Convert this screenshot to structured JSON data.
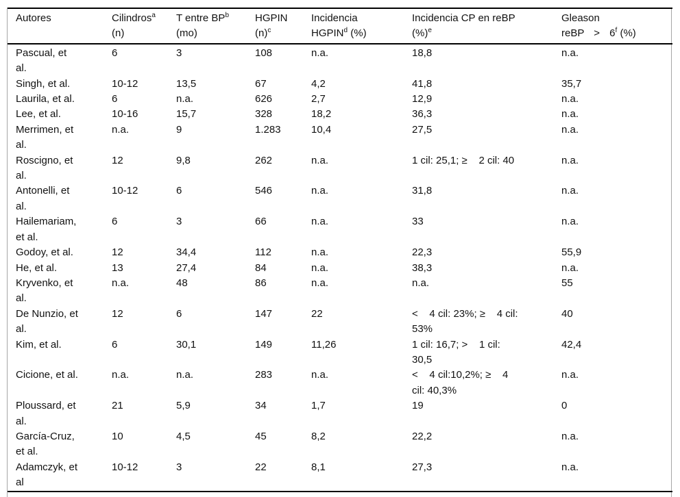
{
  "table": {
    "header": [
      {
        "l1": "Autores"
      },
      {
        "l1": "Cilindros",
        "s1": "a",
        "l2": "(n)"
      },
      {
        "l1": "T entre BP",
        "s1": "b",
        "l2": "(mo)"
      },
      {
        "l1": "HGPIN",
        "l2": "(n)",
        "s2": "c"
      },
      {
        "l1": "Incidencia",
        "l2": "HGPIN",
        "s2": "d",
        "l2b": " (%)"
      },
      {
        "l1": "Incidencia CP en reBP",
        "l2": "(%)",
        "s2": "e"
      },
      {
        "l1": "Gleason",
        "l2": "reBP > 6",
        "s2": "f",
        "l2b": " (%)"
      }
    ],
    "column_keys": [
      "autores",
      "cilindros-n",
      "t-entre-bp-mo",
      "hgpin-n",
      "incidencia-hgpin-pct",
      "incidencia-cp-rebp-pct",
      "gleason-rebp-gt6-pct"
    ],
    "rows": [
      [
        "Pascual, et al.",
        "6",
        "3",
        "108",
        "n.a.",
        "18,8",
        "n.a."
      ],
      [
        "Singh, et al.",
        "10-12",
        "13,5",
        "67",
        "4,2",
        "41,8",
        "35,7"
      ],
      [
        "Laurila, et al.",
        "6",
        "n.a.",
        "626",
        "2,7",
        "12,9",
        "n.a."
      ],
      [
        "Lee, et al.",
        "10-16",
        "15,7",
        "328",
        "18,2",
        "36,3",
        "n.a."
      ],
      [
        "Merrimen, et al.",
        "n.a.",
        "9",
        "1.283",
        "10,4",
        "27,5",
        "n.a."
      ],
      [
        "Roscigno, et al.",
        "12",
        "9,8",
        "262",
        "n.a.",
        "1 cil: 25,1; ≥    2 cil: 40",
        "n.a."
      ],
      [
        "Antonelli, et al.",
        "10-12",
        "6",
        "546",
        "n.a.",
        "31,8",
        "n.a."
      ],
      [
        "Hailemariam, et al.",
        "6",
        "3",
        "66",
        "n.a.",
        "33",
        "n.a."
      ],
      [
        "Godoy, et al.",
        "12",
        "34,4",
        "112",
        "n.a.",
        "22,3",
        "55,9"
      ],
      [
        "He, et al.",
        "13",
        "27,4",
        "84",
        "n.a.",
        "38,3",
        "n.a."
      ],
      [
        "Kryvenko, et al.",
        "n.a.",
        "48",
        "86",
        "n.a.",
        "n.a.",
        "55"
      ],
      [
        "De Nunzio, et al.",
        "12",
        "6",
        "147",
        "22",
        "<    4 cil: 23%; ≥    4 cil:\n53%",
        "40"
      ],
      [
        "Kim, et al.",
        "6",
        "30,1",
        "149",
        "11,26",
        "1 cil: 16,7; >    1 cil:\n30,5",
        "42,4"
      ],
      [
        "Cicione, et al.",
        "n.a.",
        "n.a.",
        "283",
        "n.a.",
        "<    4 cil:10,2%; ≥    4\ncil: 40,3%",
        "n.a."
      ],
      [
        "Ploussard, et al.",
        "21",
        "5,9",
        "34",
        "1,7",
        "19",
        "0"
      ],
      [
        "García-Cruz, et al.",
        "10",
        "4,5",
        "45",
        "8,2",
        "22,2",
        "n.a."
      ],
      [
        "Adamczyk, et al",
        "10-12",
        "3",
        "22",
        "8,1",
        "27,3",
        "n.a."
      ]
    ]
  }
}
